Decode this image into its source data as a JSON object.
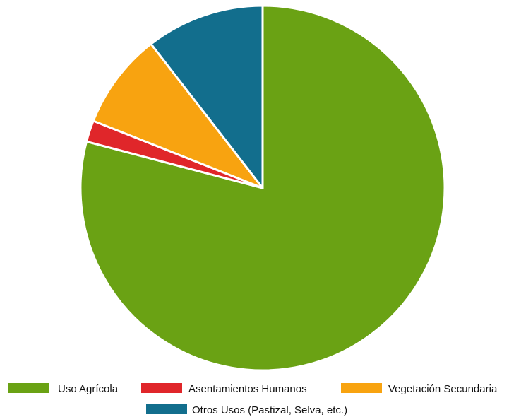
{
  "chart_data": {
    "type": "pie",
    "title": "",
    "slices": [
      {
        "label": "Uso Agrícola",
        "value": 79.1,
        "color": "#6aa214"
      },
      {
        "label": "Asentamientos Humanos",
        "value": 1.9,
        "color": "#e0262a"
      },
      {
        "label": "Vegetación Secundaria",
        "value": 8.5,
        "color": "#f8a310"
      },
      {
        "label": "Otros Usos (Pastizal, Selva, etc.)",
        "value": 10.5,
        "color": "#126e8d"
      }
    ],
    "start_angle_deg": 0,
    "direction": "clockwise",
    "legend_position": "bottom"
  }
}
